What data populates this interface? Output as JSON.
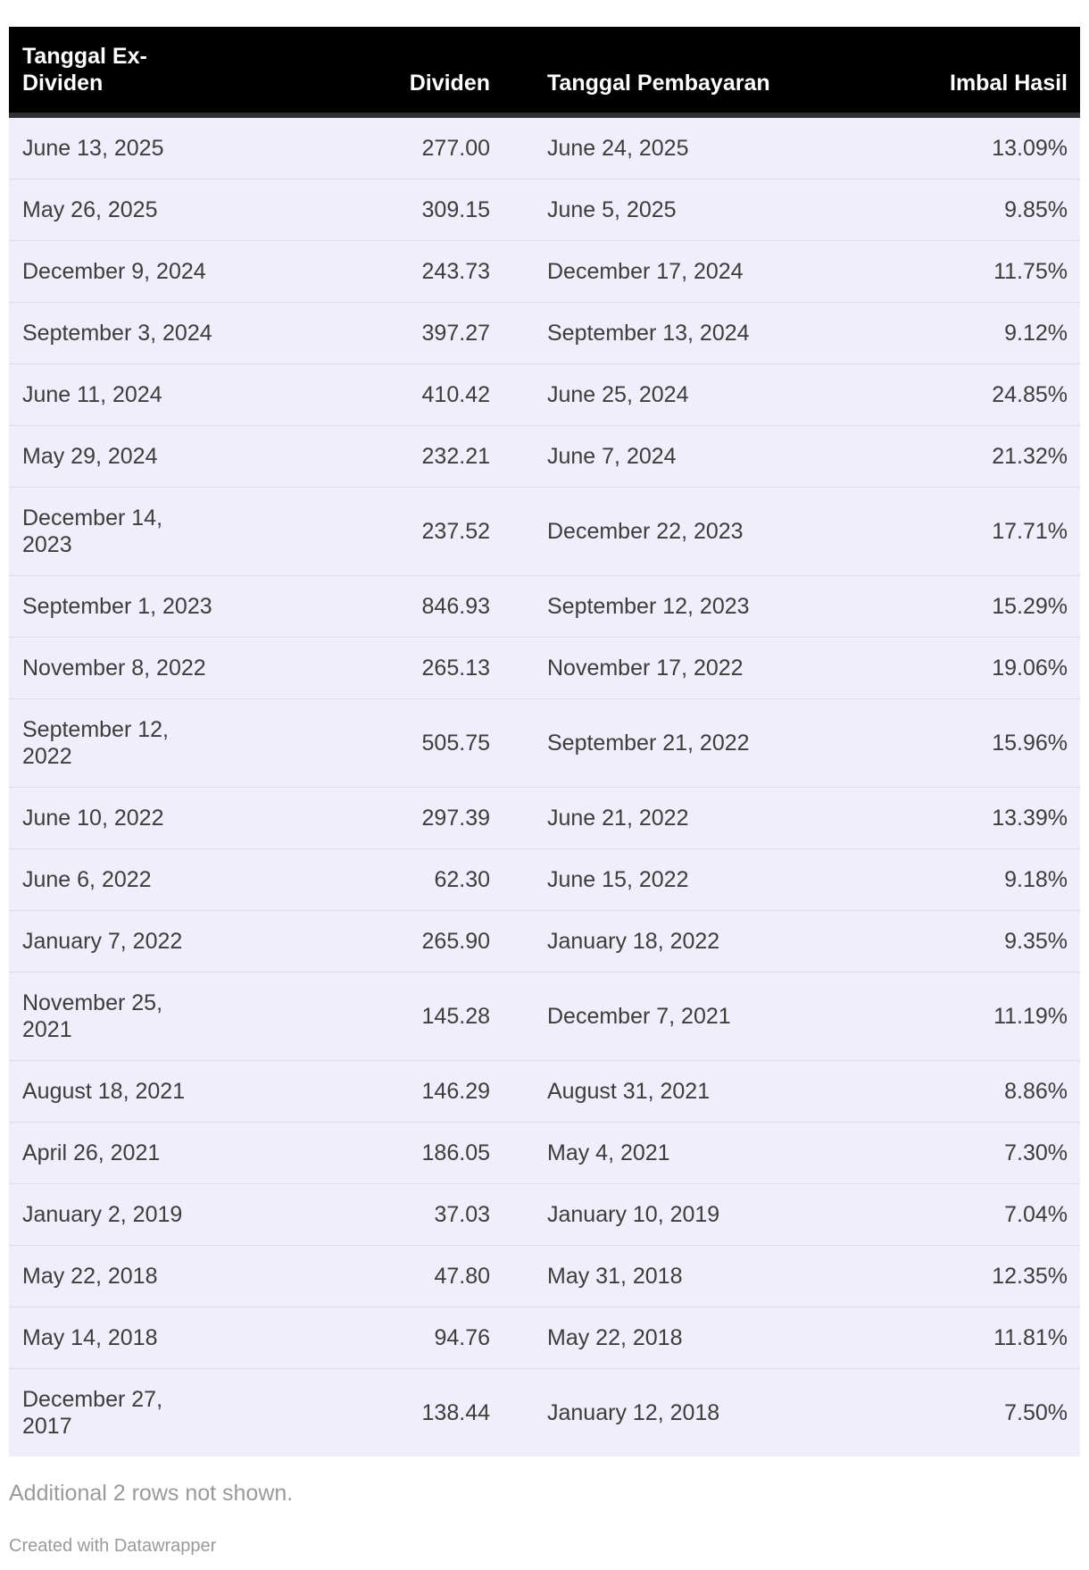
{
  "chart_data": {
    "type": "table",
    "columns": [
      "Tanggal Ex-Dividen",
      "Dividen",
      "Tanggal Pembayaran",
      "Imbal Hasil"
    ],
    "column_alignments": [
      "left",
      "right",
      "left",
      "right"
    ],
    "rows": [
      [
        "June 13, 2025",
        "277.00",
        "June 24, 2025",
        "13.09%"
      ],
      [
        "May 26, 2025",
        "309.15",
        "June 5, 2025",
        "9.85%"
      ],
      [
        "December 9, 2024",
        "243.73",
        "December 17, 2024",
        "11.75%"
      ],
      [
        "September 3, 2024",
        "397.27",
        "September 13, 2024",
        "9.12%"
      ],
      [
        "June 11, 2024",
        "410.42",
        "June 25, 2024",
        "24.85%"
      ],
      [
        "May 29, 2024",
        "232.21",
        "June 7, 2024",
        "21.32%"
      ],
      [
        "December 14, 2023",
        "237.52",
        "December 22, 2023",
        "17.71%"
      ],
      [
        "September 1, 2023",
        "846.93",
        "September 12, 2023",
        "15.29%"
      ],
      [
        "November 8, 2022",
        "265.13",
        "November 17, 2022",
        "19.06%"
      ],
      [
        "September 12, 2022",
        "505.75",
        "September 21, 2022",
        "15.96%"
      ],
      [
        "June 10, 2022",
        "297.39",
        "June 21, 2022",
        "13.39%"
      ],
      [
        "June 6, 2022",
        "62.30",
        "June 15, 2022",
        "9.18%"
      ],
      [
        "January 7, 2022",
        "265.90",
        "January 18, 2022",
        "9.35%"
      ],
      [
        "November 25, 2021",
        "145.28",
        "December 7, 2021",
        "11.19%"
      ],
      [
        "August 18, 2021",
        "146.29",
        "August 31, 2021",
        "8.86%"
      ],
      [
        "April 26, 2021",
        "186.05",
        "May 4, 2021",
        "7.30%"
      ],
      [
        "January 2, 2019",
        "37.03",
        "January 10, 2019",
        "7.04%"
      ],
      [
        "May 22, 2018",
        "47.80",
        "May 31, 2018",
        "12.35%"
      ],
      [
        "May 14, 2018",
        "94.76",
        "May 22, 2018",
        "11.81%"
      ],
      [
        "December 27, 2017",
        "138.44",
        "January 12, 2018",
        "7.50%"
      ]
    ],
    "footnote": "Additional 2 rows not shown.",
    "credit": "Created with Datawrapper"
  },
  "colors": {
    "header_bg": "#000000",
    "header_text": "#ffffff",
    "header_border": "#2f2f36",
    "row_bg": "#efeefa",
    "row_divider": "#dcdbe6",
    "cell_text": "#3d3d3d",
    "muted_text": "#9a9a9a",
    "page_bg": "#ffffff"
  }
}
